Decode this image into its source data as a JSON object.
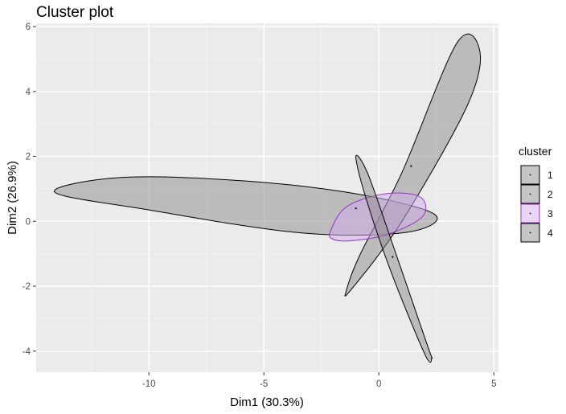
{
  "chart_data": {
    "type": "scatter",
    "title": "Cluster plot",
    "xlabel": "Dim1 (30.3%)",
    "ylabel": "Dim2 (26.9%)",
    "xlim": [
      -14.9,
      5.2
    ],
    "ylim": [
      -4.65,
      6.1
    ],
    "x_ticks": [
      -10,
      -5,
      0,
      5
    ],
    "y_ticks": [
      -4,
      -2,
      0,
      2,
      4,
      6
    ],
    "grid": true,
    "legend": {
      "title": "cluster",
      "position": "right"
    },
    "series": [
      {
        "name": "1",
        "fill": "#8c8c8c",
        "stroke": "#000000",
        "outline": [
          [
            -14.1,
            0.9
          ],
          [
            -11.2,
            1.35
          ],
          [
            -6.0,
            1.25
          ],
          [
            -1.0,
            0.85
          ],
          [
            2.45,
            0.2
          ],
          [
            1.1,
            -0.35
          ],
          [
            -3.5,
            -0.35
          ],
          [
            -10.0,
            0.35
          ]
        ],
        "center": [
          -1.0,
          0.4
        ],
        "points": [
          [
            -1.0,
            0.4
          ]
        ]
      },
      {
        "name": "2",
        "fill": "#8c8c8c",
        "stroke": "#000000",
        "outline": [
          [
            -1.4,
            -2.1
          ],
          [
            -0.8,
            -1.0
          ],
          [
            1.0,
            1.5
          ],
          [
            3.4,
            5.5
          ],
          [
            4.4,
            5.2
          ],
          [
            3.8,
            3.5
          ],
          [
            1.0,
            0.0
          ],
          [
            -1.2,
            -2.1
          ]
        ],
        "center": [
          1.4,
          1.7
        ],
        "points": [
          [
            1.4,
            1.7
          ]
        ]
      },
      {
        "name": "3",
        "fill": "#d4aef0",
        "stroke": "#9932cc",
        "outline": [
          [
            -2.1,
            -0.3
          ],
          [
            -1.4,
            0.45
          ],
          [
            0.3,
            0.85
          ],
          [
            1.8,
            0.75
          ],
          [
            1.9,
            0.15
          ],
          [
            0.4,
            -0.4
          ],
          [
            -1.2,
            -0.6
          ],
          [
            -2.0,
            -0.55
          ]
        ],
        "center": [
          0.3,
          0.3
        ],
        "points": []
      },
      {
        "name": "4",
        "fill": "#8c8c8c",
        "stroke": "#000000",
        "outline": [
          [
            -1.0,
            2.0
          ],
          [
            -0.5,
            1.5
          ],
          [
            0.5,
            -0.5
          ],
          [
            2.1,
            -3.8
          ],
          [
            2.3,
            -4.2
          ],
          [
            2.0,
            -4.1
          ],
          [
            0.5,
            -1.5
          ],
          [
            -0.6,
            0.8
          ]
        ],
        "center": [
          0.6,
          -1.1
        ],
        "points": [
          [
            0.6,
            -1.1
          ]
        ]
      }
    ]
  }
}
